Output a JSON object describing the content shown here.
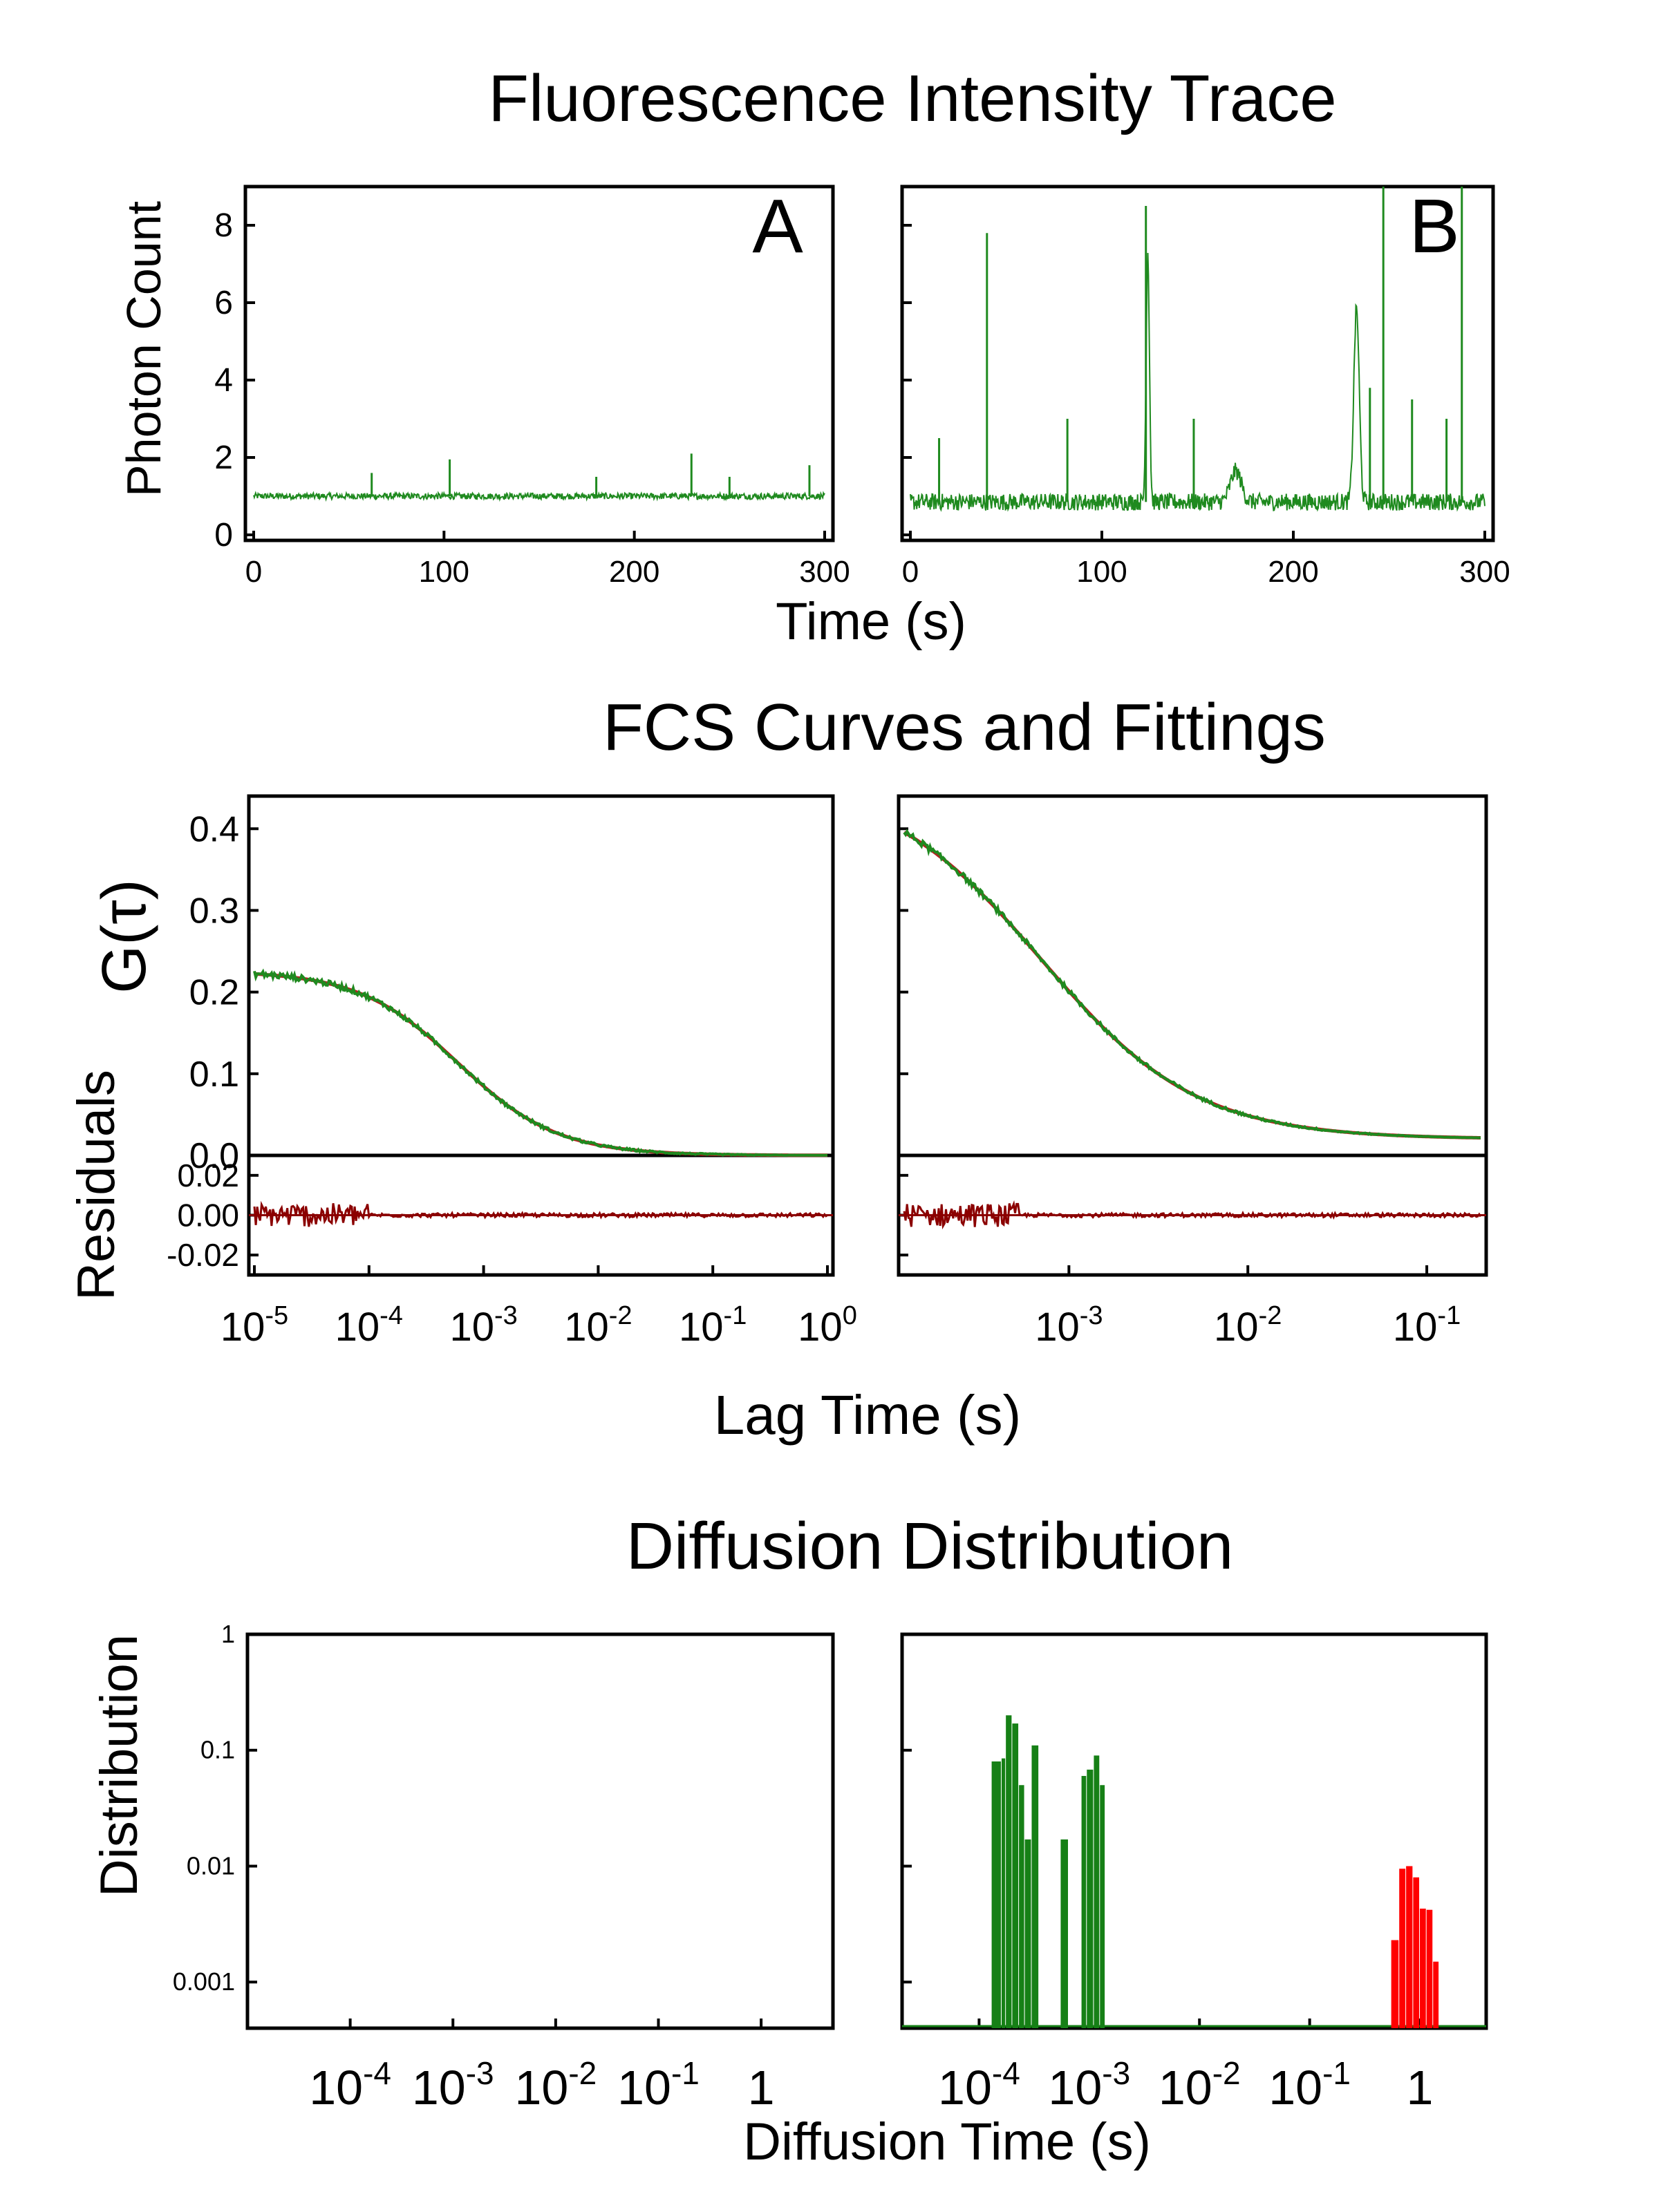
{
  "figure": {
    "section_titles": [
      "Fluorescence Intensity Trace",
      "FCS Curves and Fittings",
      "Diffusion Distribution"
    ],
    "panel_labels": [
      "A",
      "B"
    ],
    "colors": {
      "data": "#1f8a1f",
      "fit": "#b22222",
      "residual": "#8b0000",
      "dist_green": "#168016",
      "dist_red": "#ff0000",
      "axis": "#000000"
    }
  },
  "chart_data": [
    {
      "id": "trace",
      "type": "line",
      "title": "Fluorescence Intensity Trace",
      "xlabel": "Time (s)",
      "ylabel": "Photon Count",
      "xlim": [
        0,
        300
      ],
      "ylim": [
        0,
        9
      ],
      "x_ticks": [
        0,
        100,
        200,
        300
      ],
      "y_ticks": [
        0,
        2,
        4,
        6,
        8
      ],
      "panels": [
        {
          "label": "A",
          "baseline": 1.0,
          "noise": 0.08,
          "spikes": [
            [
              62,
              1.6
            ],
            [
              103,
              1.95
            ],
            [
              180,
              1.5
            ],
            [
              230,
              2.1
            ],
            [
              250,
              1.5
            ],
            [
              292,
              1.8
            ]
          ],
          "bumps": []
        },
        {
          "label": "B",
          "baseline": 0.85,
          "noise": 0.22,
          "spikes": [
            [
              15,
              2.5
            ],
            [
              40,
              7.8
            ],
            [
              82,
              3.0
            ],
            [
              123,
              8.5
            ],
            [
              148,
              3.0
            ],
            [
              240,
              3.8
            ],
            [
              247,
              9.0
            ],
            [
              262,
              3.5
            ],
            [
              280,
              3.0
            ],
            [
              288,
              9.0
            ]
          ],
          "bumps": [
            [
              124,
              6.5,
              1.2
            ],
            [
              170,
              0.8,
              4
            ],
            [
              233,
              5.0,
              2.0
            ]
          ]
        }
      ]
    },
    {
      "id": "fcs",
      "type": "line",
      "title": "FCS Curves and Fittings",
      "xlabel": "Lag Time (s)",
      "ylabel": "G(τ)",
      "ylabel_residuals": "Residuals",
      "scale": "log",
      "ylim": [
        0,
        0.44
      ],
      "y_ticks": [
        0.0,
        0.1,
        0.2,
        0.3,
        0.4
      ],
      "residual_ylim": [
        -0.03,
        0.03
      ],
      "residual_ticks": [
        0.02,
        0.0,
        -0.02
      ],
      "residual_tick_labels": [
        "0.02",
        "0.00",
        "-0.02"
      ],
      "panels": [
        {
          "label": "A",
          "xlim": [
            1e-05,
            1.0
          ],
          "x_ticks": [
            -5,
            -4,
            -3,
            -2,
            -1,
            0
          ],
          "G0": 0.226,
          "tau": 0.0006,
          "offset": 0.0,
          "tick_labels": [
            "10^-5",
            "10^-4",
            "10^-3",
            "10^-2",
            "10^-1",
            "10^0"
          ]
        },
        {
          "label": "B",
          "xlim": [
            0.00012,
            0.2
          ],
          "x_ticks": [
            -3,
            -2,
            -1
          ],
          "G0": 0.46,
          "tau": 0.0007,
          "offset": 0.02,
          "tick_labels": [
            "10^-3",
            "10^-2",
            "10^-1"
          ]
        }
      ]
    },
    {
      "id": "distribution",
      "type": "bar",
      "title": "Diffusion Distribution",
      "xlabel": "Diffusion Time (s)",
      "ylabel": "Distribution",
      "scale": "log",
      "ylim": [
        0.0004,
        1
      ],
      "y_ticks": [
        0.001,
        0.01,
        0.1,
        1
      ],
      "y_tick_labels": [
        "0.001",
        "0.01",
        "0.1",
        "1"
      ],
      "panels": [
        {
          "label": "A",
          "xlim": [
            1e-05,
            5
          ],
          "x_ticks": [
            -4,
            -3,
            -2,
            -1,
            0
          ],
          "tick_labels": [
            "10^-4",
            "10^-3",
            "10^-2",
            "10^-1",
            "1"
          ],
          "bars": []
        },
        {
          "label": "B",
          "xlim": [
            2e-05,
            4
          ],
          "x_ticks": [
            -4,
            -3,
            -2,
            -1,
            0
          ],
          "tick_labels": [
            "10^-4",
            "10^-3",
            "10^-2",
            "10^-1",
            "1"
          ],
          "bars": [
            [
              0.00013,
              0.00016,
              0.08,
              "green"
            ],
            [
              0.00016,
              0.000175,
              0.085,
              "green"
            ],
            [
              0.000175,
              0.0002,
              0.2,
              "green"
            ],
            [
              0.0002,
              0.00023,
              0.17,
              "green"
            ],
            [
              0.00023,
              0.00026,
              0.05,
              "green"
            ],
            [
              0.00026,
              0.0003,
              0.017,
              "green"
            ],
            [
              0.0003,
              0.00035,
              0.11,
              "green"
            ],
            [
              0.00055,
              0.00065,
              0.017,
              "green"
            ],
            [
              0.00085,
              0.00095,
              0.06,
              "green"
            ],
            [
              0.00095,
              0.0011,
              0.068,
              "green"
            ],
            [
              0.0011,
              0.00125,
              0.09,
              "green"
            ],
            [
              0.00125,
              0.0014,
              0.05,
              "green"
            ],
            [
              0.55,
              0.65,
              0.0023,
              "red"
            ],
            [
              0.65,
              0.75,
              0.0095,
              "red"
            ],
            [
              0.75,
              0.87,
              0.01,
              "red"
            ],
            [
              0.87,
              1.0,
              0.008,
              "red"
            ],
            [
              1.0,
              1.15,
              0.0043,
              "red"
            ],
            [
              1.15,
              1.32,
              0.0042,
              "red"
            ],
            [
              1.32,
              1.5,
              0.0015,
              "red"
            ]
          ]
        }
      ]
    }
  ]
}
